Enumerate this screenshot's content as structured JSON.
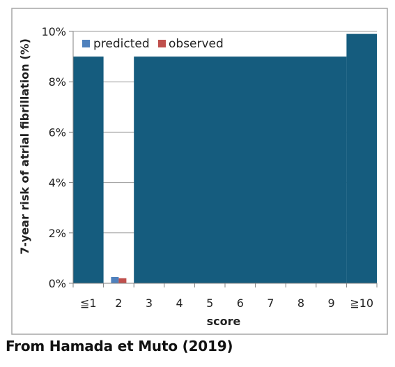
{
  "chart_data": {
    "type": "bar",
    "categories": [
      "≦1",
      "2",
      "3",
      "4",
      "5",
      "6",
      "7",
      "8",
      "9",
      "≧10"
    ],
    "series": [
      {
        "name": "predicted",
        "values": [
          0,
          0.25,
          0,
          0,
          0,
          0,
          0,
          0,
          0,
          0
        ]
      },
      {
        "name": "observed",
        "values": [
          0,
          0.2,
          0,
          0,
          0,
          0,
          0,
          0,
          0,
          0
        ]
      }
    ],
    "ylabel": "7-year risk of atrial fibrillation (%)",
    "xlabel": "score",
    "ylim": [
      0,
      10
    ],
    "yticks": [
      0,
      2,
      4,
      6,
      8,
      10
    ],
    "ytick_labels": [
      "0%",
      "2%",
      "4%",
      "6%",
      "8%",
      "10%"
    ],
    "grid": true,
    "legend_position": "top-left",
    "colors": {
      "predicted": "#4f81bd",
      "observed": "#c0504d",
      "overlay": "#155c7e"
    },
    "occlusion_overlay": [
      {
        "from": "≦1",
        "to": "≦1",
        "top": 9
      },
      {
        "from": "3",
        "to": "9",
        "top": 9
      },
      {
        "from": "≧10",
        "to": "≧10",
        "top": 9.9
      }
    ]
  },
  "caption": "From Hamada et Muto (2019)"
}
